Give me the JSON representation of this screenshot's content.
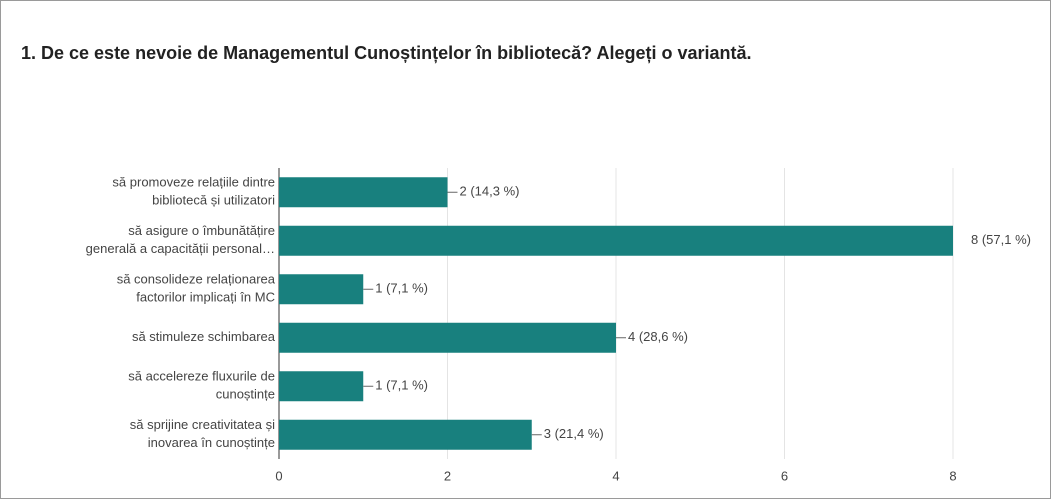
{
  "chart_data": {
    "type": "bar",
    "orientation": "horizontal",
    "title": "1. De ce este nevoie de Managementul Cunoștințelor în bibliotecă? Alegeți o variantă.",
    "categories": [
      "să promoveze relațiile dintre\nbibliotecă și utilizatori",
      "să asigure o îmbunătățire\ngenerală a capacității personal…",
      "să consolideze relaționarea\nfactorilor implicați în MC",
      "să stimuleze schimbarea",
      "să accelereze fluxurile de\ncunoștințe",
      "să sprijine creativitatea și\ninovarea în cunoștințe"
    ],
    "values": [
      2,
      8,
      1,
      4,
      1,
      3
    ],
    "value_labels": [
      "2 (14,3 %)",
      "8 (57,1 %)",
      "1 (7,1 %)",
      "4 (28,6 %)",
      "1 (7,1 %)",
      "3 (21,4 %)"
    ],
    "color": "#18807e",
    "xlim": [
      0,
      8
    ],
    "xticks": [
      0,
      2,
      4,
      6,
      8
    ],
    "grid": true
  }
}
